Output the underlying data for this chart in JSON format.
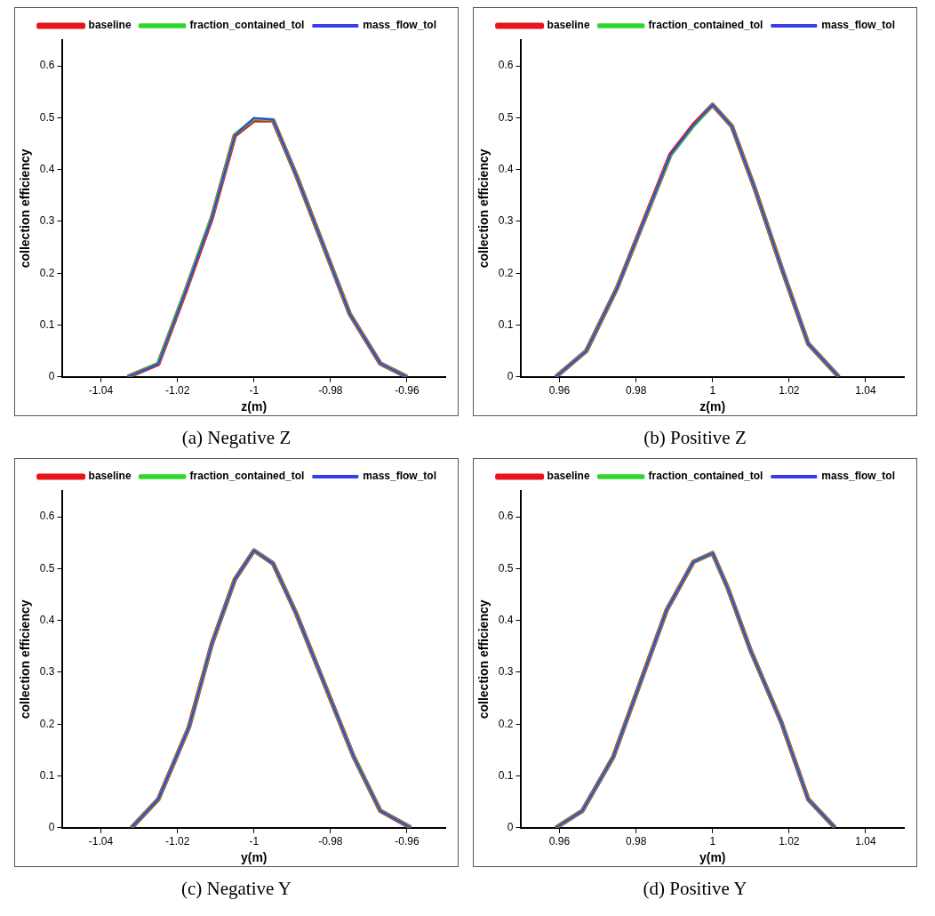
{
  "chart_data": [
    {
      "type": "line",
      "title": "(a) Negative Z",
      "xlabel": "z(m)",
      "ylabel": "collection efficiency",
      "xlim": [
        -1.05,
        -0.95
      ],
      "xticks": [
        -1.04,
        -1.02,
        -1,
        -0.98,
        -0.96
      ],
      "ylim": [
        0,
        0.65
      ],
      "yticks": [
        0,
        0.1,
        0.2,
        0.3,
        0.4,
        0.5,
        0.6
      ],
      "legend": "top right",
      "x": [
        -1.033,
        -1.025,
        -1.018,
        -1.011,
        -1.005,
        -1,
        -0.995,
        -0.989,
        -0.975,
        -0.967,
        -0.96
      ],
      "series": [
        {
          "name": "baseline",
          "color": "#e8141c",
          "values": [
            0,
            0.025,
            0.163,
            0.307,
            0.466,
            0.495,
            0.495,
            0.39,
            0.122,
            0.026,
            0
          ]
        },
        {
          "name": "fraction_contained_tol",
          "color": "#2ed62e",
          "values": [
            0,
            0.026,
            0.165,
            0.309,
            0.467,
            0.498,
            0.496,
            0.39,
            0.122,
            0.026,
            0
          ]
        },
        {
          "name": "mass_flow_tol",
          "color": "#3a3aef",
          "values": [
            0,
            0.025,
            0.163,
            0.307,
            0.466,
            0.5,
            0.496,
            0.39,
            0.122,
            0.026,
            0
          ]
        }
      ]
    },
    {
      "type": "line",
      "title": "(b) Positive Z",
      "xlabel": "z(m)",
      "ylabel": "collection efficiency",
      "xlim": [
        0.95,
        1.05
      ],
      "xticks": [
        0.96,
        0.98,
        1,
        1.02,
        1.04
      ],
      "ylim": [
        0,
        0.65
      ],
      "yticks": [
        0,
        0.1,
        0.2,
        0.3,
        0.4,
        0.5,
        0.6
      ],
      "legend": "top right",
      "x": [
        0.959,
        0.967,
        0.975,
        0.989,
        0.995,
        1,
        1.005,
        1.011,
        1.018,
        1.025,
        1.033
      ],
      "series": [
        {
          "name": "baseline",
          "color": "#e8141c",
          "values": [
            0,
            0.05,
            0.171,
            0.429,
            0.486,
            0.525,
            0.484,
            0.364,
            0.211,
            0.064,
            0
          ]
        },
        {
          "name": "fraction_contained_tol",
          "color": "#2ed62e",
          "values": [
            0,
            0.05,
            0.171,
            0.427,
            0.484,
            0.525,
            0.484,
            0.364,
            0.211,
            0.064,
            0
          ]
        },
        {
          "name": "mass_flow_tol",
          "color": "#3a3aef",
          "values": [
            0,
            0.05,
            0.171,
            0.429,
            0.486,
            0.525,
            0.484,
            0.364,
            0.211,
            0.064,
            0
          ]
        }
      ]
    },
    {
      "type": "line",
      "title": "(c) Negative Y",
      "xlabel": "y(m)",
      "ylabel": "collection efficiency",
      "xlim": [
        -1.05,
        -0.95
      ],
      "xticks": [
        -1.04,
        -1.02,
        -1,
        -0.98,
        -0.96
      ],
      "ylim": [
        0,
        0.65
      ],
      "yticks": [
        0,
        0.1,
        0.2,
        0.3,
        0.4,
        0.5,
        0.6
      ],
      "legend": "top right",
      "x": [
        -1.032,
        -1.025,
        -1.017,
        -1.011,
        -1.005,
        -1,
        -0.995,
        -0.989,
        -0.974,
        -0.967,
        -0.959
      ],
      "series": [
        {
          "name": "baseline",
          "color": "#e8141c",
          "values": [
            0,
            0.055,
            0.194,
            0.355,
            0.479,
            0.535,
            0.51,
            0.414,
            0.138,
            0.033,
            0
          ]
        },
        {
          "name": "fraction_contained_tol",
          "color": "#2ed62e",
          "values": [
            0,
            0.055,
            0.194,
            0.355,
            0.479,
            0.535,
            0.51,
            0.414,
            0.138,
            0.033,
            0
          ]
        },
        {
          "name": "mass_flow_tol",
          "color": "#3a3aef",
          "values": [
            0,
            0.055,
            0.194,
            0.355,
            0.479,
            0.535,
            0.51,
            0.414,
            0.138,
            0.033,
            0
          ]
        }
      ]
    },
    {
      "type": "line",
      "title": "(d) Positive Y",
      "xlabel": "y(m)",
      "ylabel": "collection efficiency",
      "xlim": [
        0.95,
        1.05
      ],
      "xticks": [
        0.96,
        0.98,
        1,
        1.02,
        1.04
      ],
      "ylim": [
        0,
        0.65
      ],
      "yticks": [
        0,
        0.1,
        0.2,
        0.3,
        0.4,
        0.5,
        0.6
      ],
      "legend": "top right",
      "x": [
        0.959,
        0.966,
        0.974,
        0.988,
        0.995,
        1,
        1.004,
        1.01,
        1.018,
        1.025,
        1.032
      ],
      "series": [
        {
          "name": "baseline",
          "color": "#e8141c",
          "values": [
            0,
            0.033,
            0.136,
            0.42,
            0.513,
            0.53,
            0.462,
            0.341,
            0.203,
            0.055,
            0
          ]
        },
        {
          "name": "fraction_contained_tol",
          "color": "#2ed62e",
          "values": [
            0,
            0.033,
            0.136,
            0.42,
            0.513,
            0.53,
            0.462,
            0.341,
            0.203,
            0.055,
            0
          ]
        },
        {
          "name": "mass_flow_tol",
          "color": "#3a3aef",
          "values": [
            0,
            0.033,
            0.136,
            0.42,
            0.513,
            0.53,
            0.462,
            0.341,
            0.203,
            0.055,
            0
          ]
        }
      ]
    }
  ]
}
